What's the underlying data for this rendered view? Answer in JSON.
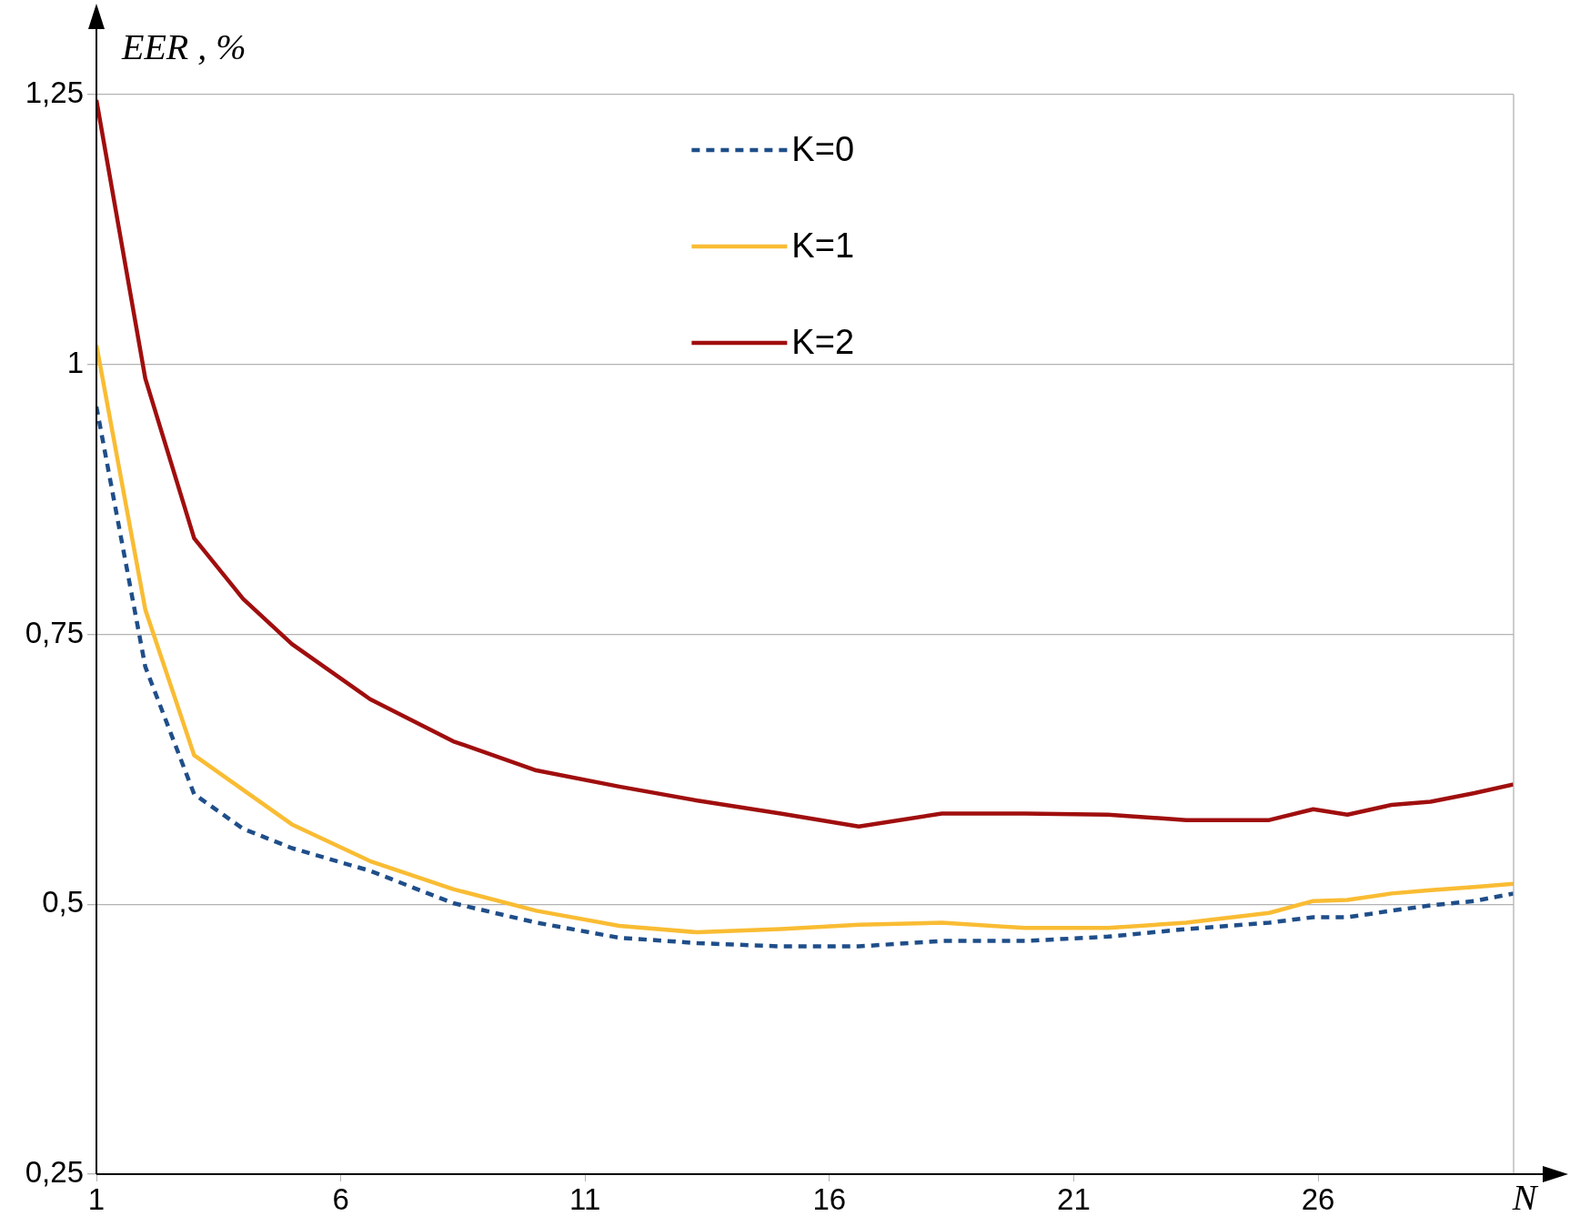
{
  "chart_data": {
    "type": "line",
    "xlabel": "N",
    "ylabel": "EER , %",
    "x": [
      1,
      2,
      3,
      4,
      5,
      6.6,
      8.3,
      10,
      11.7,
      13.3,
      15,
      16.6,
      18.3,
      20,
      21.7,
      23.3,
      25,
      25.9,
      26.6,
      27.5,
      28.3,
      29.2,
      30
    ],
    "series": [
      {
        "name": "K=0",
        "color": "#1f4e89",
        "line_style": "dashed",
        "values": [
          0.961,
          0.72,
          0.602,
          0.57,
          0.552,
          0.531,
          0.501,
          0.483,
          0.469,
          0.464,
          0.461,
          0.461,
          0.466,
          0.466,
          0.47,
          0.477,
          0.483,
          0.488,
          0.488,
          0.494,
          0.499,
          0.503,
          0.51
        ]
      },
      {
        "name": "K=1",
        "color": "#f9bc33",
        "line_style": "solid",
        "values": [
          1.018,
          0.773,
          0.638,
          0.606,
          0.574,
          0.54,
          0.514,
          0.494,
          0.48,
          0.474,
          0.477,
          0.481,
          0.483,
          0.478,
          0.478,
          0.483,
          0.492,
          0.503,
          0.504,
          0.51,
          0.513,
          0.516,
          0.519
        ]
      },
      {
        "name": "K=2",
        "color": "#a00e0e",
        "line_style": "solid",
        "values": [
          1.245,
          0.987,
          0.839,
          0.783,
          0.741,
          0.69,
          0.651,
          0.624,
          0.609,
          0.596,
          0.584,
          0.572,
          0.584,
          0.584,
          0.583,
          0.578,
          0.578,
          0.588,
          0.583,
          0.592,
          0.595,
          0.603,
          0.611
        ]
      }
    ],
    "xlim": [
      1,
      30
    ],
    "xticks": [
      1,
      6,
      11,
      16,
      21,
      26
    ],
    "ylim": [
      0.25,
      1.25
    ],
    "yticks": [
      {
        "value": 0.25,
        "label": "0,25"
      },
      {
        "value": 0.5,
        "label": "0,5"
      },
      {
        "value": 0.75,
        "label": "0,75"
      },
      1,
      {
        "value": 1.25,
        "label": "1,25"
      }
    ],
    "grid": "y",
    "legend": "top",
    "marker": "none"
  }
}
